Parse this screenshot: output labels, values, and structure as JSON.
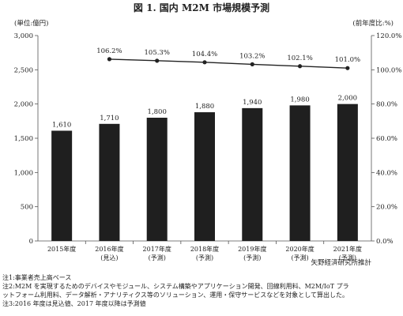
{
  "chart_data": {
    "type": "bar",
    "title": "図 1. 国内 M2M 市場規模予測",
    "y_unit_label": "(単位:億円)",
    "y2_unit_label": "(前年度比:%)",
    "categories": [
      [
        "2015年度",
        ""
      ],
      [
        "2016年度",
        "(見込)"
      ],
      [
        "2017年度",
        "(予測)"
      ],
      [
        "2018年度",
        "(予測)"
      ],
      [
        "2019年度",
        "(予測)"
      ],
      [
        "2020年度",
        "(予測)"
      ],
      [
        "2021年度",
        "(予測)"
      ]
    ],
    "series": [
      {
        "type": "bar",
        "axis": "left",
        "values": [
          1610,
          1710,
          1800,
          1880,
          1940,
          1980,
          2000
        ],
        "labels": [
          "1,610",
          "1,710",
          "1,800",
          "1,880",
          "1,940",
          "1,980",
          "2,000"
        ],
        "color": "#1f1f1f"
      },
      {
        "type": "line",
        "axis": "right",
        "values": [
          null,
          106.2,
          105.3,
          104.4,
          103.2,
          102.1,
          101.0
        ],
        "labels": [
          "",
          "106.2%",
          "105.3%",
          "104.4%",
          "103.2%",
          "102.1%",
          "101.0%"
        ],
        "color": "#222222"
      }
    ],
    "ylim": [
      0,
      3000
    ],
    "yticks": [
      0,
      500,
      1000,
      1500,
      2000,
      2500,
      3000
    ],
    "ytick_labels": [
      "0",
      "500",
      "1,000",
      "1,500",
      "2,000",
      "2,500",
      "3,000"
    ],
    "y2lim": [
      0,
      120
    ],
    "y2ticks": [
      0,
      20,
      40,
      60,
      80,
      100,
      120
    ],
    "y2tick_labels": [
      "0.0%",
      "20.0%",
      "40.0%",
      "60.0%",
      "80.0%",
      "100.0%",
      "120.0%"
    ],
    "grid": false,
    "source": "矢野経済研究所推計"
  },
  "notes": [
    "注1:事業者売上高ベース",
    "注2:M2M を実現するためのデバイスやモジュール、システム構築やアプリケーション開発、回線利用料、M2M/IoT プラ",
    "ットフォーム利用料、データ解析・アナリティクス等のソリューション、運用・保守サービスなどを対象として算出した。",
    "注3:2016 年度は見込値、2017 年度以降は予測値"
  ]
}
